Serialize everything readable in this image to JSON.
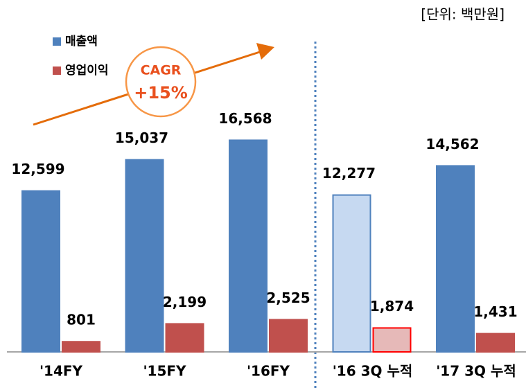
{
  "chart_data": {
    "type": "bar",
    "unit_note": "[단위: 백만원]",
    "annotation": {
      "title": "CAGR",
      "value": "+15%"
    },
    "categories": [
      "'14FY",
      "'15FY",
      "'16FY",
      "'16 3Q 누적",
      "'17 3Q 누적"
    ],
    "series": [
      {
        "name": "매출액",
        "color": "#4f81bd",
        "colors": [
          "#4f81bd",
          "#4f81bd",
          "#4f81bd",
          "#c6d9f1",
          "#4f81bd"
        ],
        "edgecolors": [
          "#4f81bd",
          "#4f81bd",
          "#4f81bd",
          "#4f81bd",
          "#4f81bd"
        ],
        "values": [
          12599,
          15037,
          16568,
          12277,
          14562
        ],
        "value_labels": [
          "12,599",
          "15,037",
          "16,568",
          "12,277",
          "14,562"
        ]
      },
      {
        "name": "영업이익",
        "color": "#c0504d",
        "colors": [
          "#c0504d",
          "#c0504d",
          "#c0504d",
          "#e6b9b8",
          "#c0504d"
        ],
        "edgecolors": [
          "#c0504d",
          "#c0504d",
          "#c0504d",
          "#ff0000",
          "#c0504d"
        ],
        "values": [
          801,
          2199,
          2525,
          1874,
          1431
        ],
        "value_labels": [
          "801",
          "2,199",
          "2,525",
          "1,874",
          "1,431"
        ]
      }
    ],
    "ylim": [
      0,
      18000
    ]
  }
}
